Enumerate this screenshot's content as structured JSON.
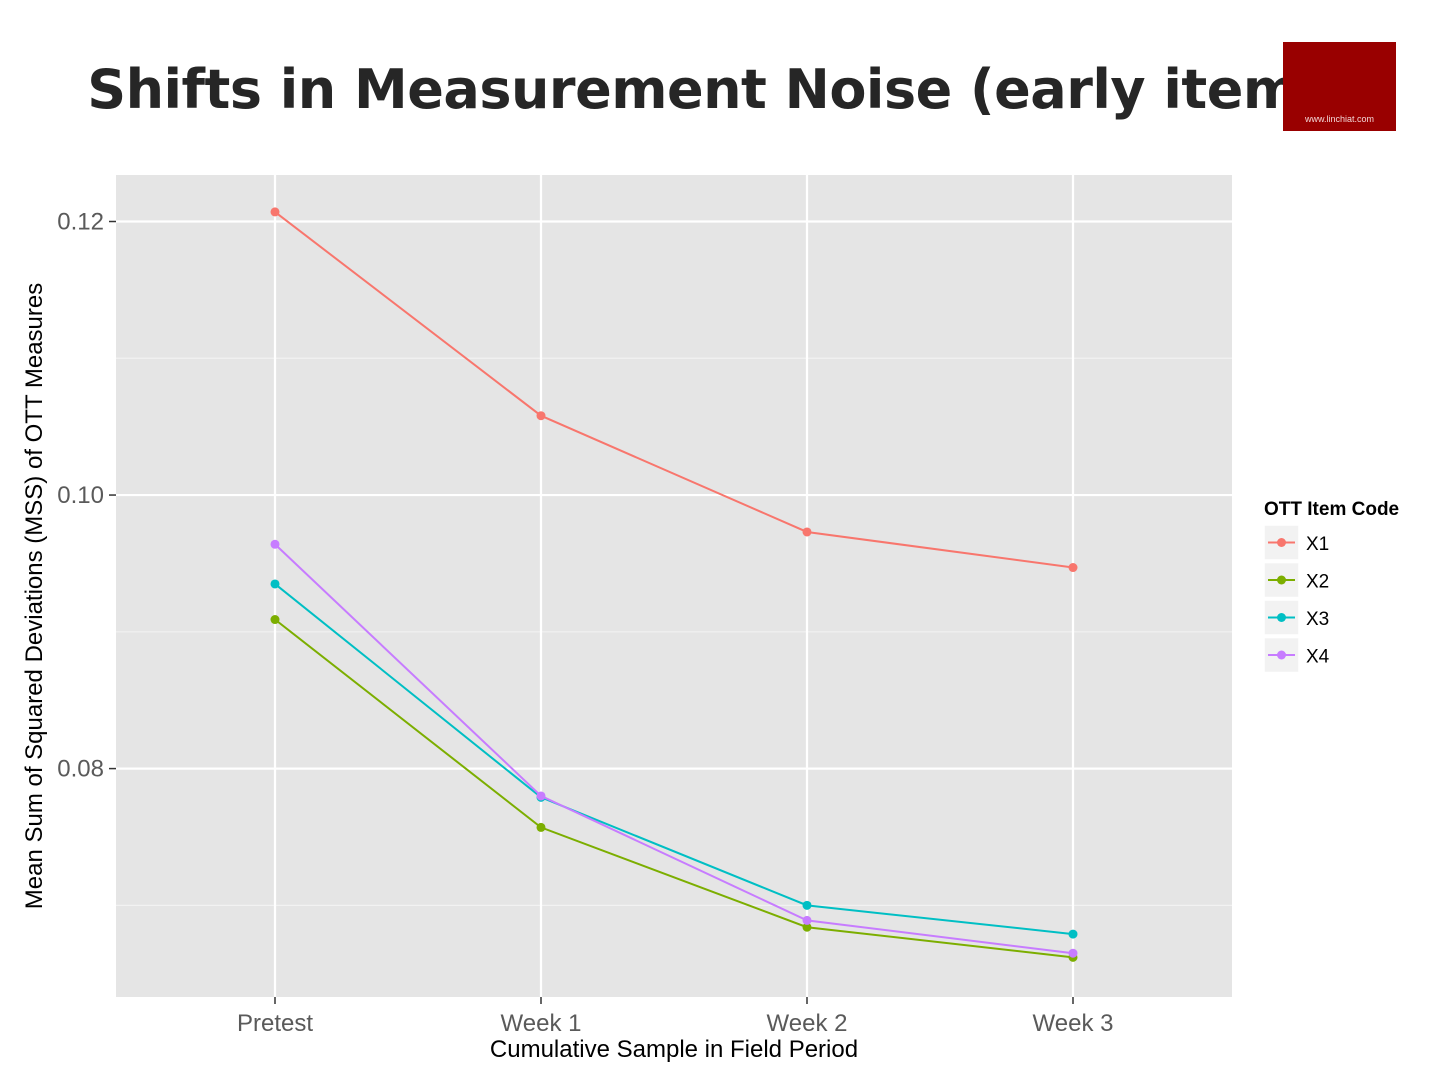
{
  "page": {
    "title": "Shifts in Measurement Noise (early item)",
    "logo_text": "www.linchiat.com"
  },
  "colors": {
    "panel": "#e5e5e5",
    "grid_major": "#ffffff",
    "grid_minor": "#f2f2f2",
    "logo": "#990000"
  },
  "chart_data": {
    "type": "line",
    "title": "Shifts in Measurement Noise (early item)",
    "xlabel": "Cumulative Sample in Field Period",
    "ylabel": "Mean Sum of Squared Deviations (MSS) of OTT Measures",
    "categories": [
      "Pretest",
      "Week 1",
      "Week 2",
      "Week 3"
    ],
    "ylim": [
      0.0633,
      0.1234
    ],
    "yticks": [
      0.08,
      0.1,
      0.12
    ],
    "ytick_labels": [
      "0.08",
      "0.10",
      "0.12"
    ],
    "grid": true,
    "legend": {
      "title": "OTT Item Code",
      "placement": "right"
    },
    "series": [
      {
        "name": "X1",
        "color": "#F8766D",
        "values": [
          0.1207,
          0.1058,
          0.0973,
          0.0947
        ]
      },
      {
        "name": "X2",
        "color": "#7CAE00",
        "values": [
          0.0909,
          0.0757,
          0.0684,
          0.0662
        ]
      },
      {
        "name": "X3",
        "color": "#00BFC4",
        "values": [
          0.0935,
          0.0779,
          0.07,
          0.0679
        ]
      },
      {
        "name": "X4",
        "color": "#C77CFF",
        "values": [
          0.0964,
          0.078,
          0.0689,
          0.0665
        ]
      }
    ]
  }
}
